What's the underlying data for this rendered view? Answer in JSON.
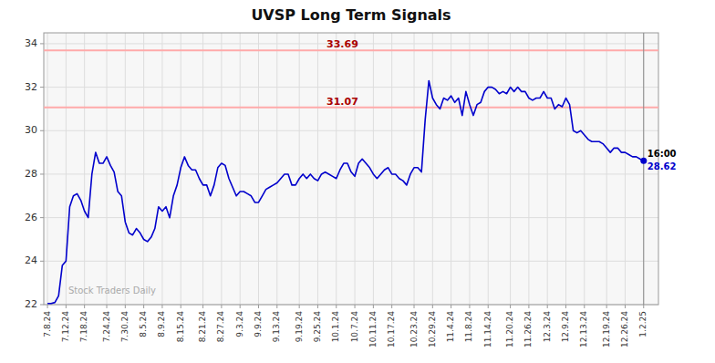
{
  "chart_data": {
    "type": "line",
    "title": "UVSP Long Term Signals",
    "categories": [
      "7.8.24",
      null,
      null,
      null,
      null,
      "7.12.24",
      null,
      null,
      null,
      null,
      "7.18.24",
      null,
      null,
      null,
      null,
      null,
      "7.24.24",
      null,
      null,
      null,
      null,
      "7.30.24",
      null,
      null,
      null,
      null,
      "8.5.24",
      null,
      null,
      null,
      null,
      "8.9.24",
      null,
      null,
      null,
      null,
      "8.15.24",
      null,
      null,
      null,
      null,
      null,
      "8.21.24",
      null,
      null,
      null,
      null,
      "8.27.24",
      null,
      null,
      null,
      null,
      "9.3.24",
      null,
      null,
      null,
      null,
      "9.9.24",
      null,
      null,
      null,
      null,
      "9.13.24",
      null,
      null,
      null,
      null,
      null,
      "9.19.24",
      null,
      null,
      null,
      null,
      "9.25.24",
      null,
      null,
      null,
      null,
      "10.1.24",
      null,
      null,
      null,
      null,
      "10.7.24",
      null,
      null,
      null,
      null,
      "10.11.24",
      null,
      null,
      null,
      null,
      "10.17.24",
      null,
      null,
      null,
      null,
      null,
      "10.23.24",
      null,
      null,
      null,
      null,
      "10.29.24",
      null,
      null,
      null,
      null,
      "11.4.24",
      null,
      null,
      null,
      null,
      "11.8.24",
      null,
      null,
      null,
      null,
      "11.14.24",
      null,
      null,
      null,
      null,
      null,
      "11.20.24",
      null,
      null,
      null,
      null,
      "11.26.24",
      null,
      null,
      null,
      null,
      "12.3.24",
      null,
      null,
      null,
      null,
      "12.9.24",
      null,
      null,
      null,
      null,
      "12.13.24",
      null,
      null,
      null,
      null,
      null,
      "12.19.24",
      null,
      null,
      null,
      null,
      "12.26.24",
      null,
      null,
      null,
      null,
      "1.2.25"
    ],
    "values": [
      22.05,
      22.05,
      22.1,
      22.4,
      23.8,
      24.0,
      26.5,
      27.0,
      27.1,
      26.8,
      26.3,
      26.0,
      28.0,
      29.0,
      28.5,
      28.5,
      28.8,
      28.4,
      28.1,
      27.2,
      27.0,
      25.8,
      25.3,
      25.2,
      25.5,
      25.3,
      25.0,
      24.9,
      25.1,
      25.5,
      26.5,
      26.3,
      26.5,
      26.0,
      27.0,
      27.5,
      28.3,
      28.8,
      28.4,
      28.2,
      28.2,
      27.8,
      27.5,
      27.5,
      27.0,
      27.5,
      28.3,
      28.5,
      28.4,
      27.8,
      27.4,
      27.0,
      27.2,
      27.2,
      27.1,
      27.0,
      26.7,
      26.7,
      27.0,
      27.3,
      27.4,
      27.5,
      27.6,
      27.8,
      28.0,
      28.0,
      27.5,
      27.5,
      27.8,
      28.0,
      27.8,
      28.0,
      27.8,
      27.7,
      28.0,
      28.1,
      28.0,
      27.9,
      27.8,
      28.2,
      28.5,
      28.5,
      28.1,
      27.9,
      28.5,
      28.7,
      28.5,
      28.3,
      28.0,
      27.8,
      28.0,
      28.2,
      28.3,
      28.0,
      28.0,
      27.8,
      27.7,
      27.5,
      28.0,
      28.3,
      28.3,
      28.1,
      30.5,
      32.3,
      31.5,
      31.2,
      31.0,
      31.5,
      31.4,
      31.6,
      31.3,
      31.5,
      30.7,
      31.8,
      31.2,
      30.7,
      31.2,
      31.3,
      31.8,
      32.0,
      32.0,
      31.9,
      31.7,
      31.8,
      31.7,
      32.0,
      31.8,
      32.0,
      31.8,
      31.8,
      31.5,
      31.4,
      31.5,
      31.5,
      31.8,
      31.5,
      31.5,
      31.0,
      31.2,
      31.1,
      31.5,
      31.2,
      30.0,
      29.9,
      30.0,
      29.8,
      29.6,
      29.5,
      29.5,
      29.5,
      29.4,
      29.2,
      29.0,
      29.2,
      29.2,
      29.0,
      29.0,
      28.9,
      28.8,
      28.8,
      28.7,
      28.62
    ],
    "color": "#0000cc",
    "ylim": [
      22,
      34.5
    ],
    "yticks": [
      22,
      24,
      26,
      28,
      30,
      32,
      34
    ],
    "grid": true,
    "reference_lines": [
      {
        "value": 33.69,
        "label": "33.69",
        "color": "#ffaaaa",
        "label_color": "#aa0000"
      },
      {
        "value": 31.07,
        "label": "31.07",
        "color": "#ffaaaa",
        "label_color": "#aa0000"
      }
    ],
    "end_time_label": "16:00",
    "end_time_label_color": "#000000",
    "end_value_label": "28.62",
    "watermark": "Stock Traders Daily",
    "watermark_color": "#aaaaaa"
  }
}
